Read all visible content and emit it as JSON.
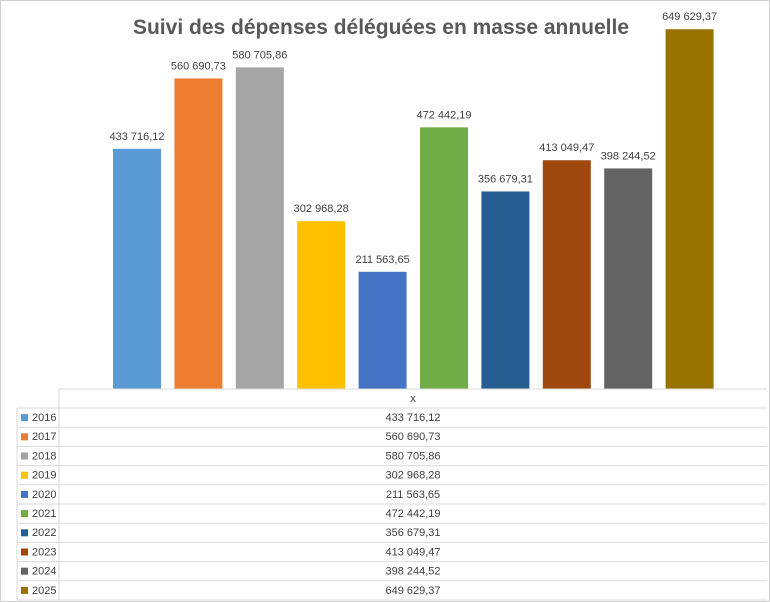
{
  "chart_data": {
    "type": "bar",
    "title": "Suivi des dépenses déléguées en masse annuelle",
    "xlabel": "x",
    "ylabel": "",
    "ylim": [
      0,
      650000
    ],
    "grid": false,
    "legend_placement": "bottom-table",
    "categories": [
      "x"
    ],
    "series": [
      {
        "name": "2016",
        "label": "433 716,12",
        "value": 433716.12,
        "color": "#5B9BD5"
      },
      {
        "name": "2017",
        "label": "560 690,73",
        "value": 560690.73,
        "color": "#ED7D31"
      },
      {
        "name": "2018",
        "label": "580 705,86",
        "value": 580705.86,
        "color": "#A5A5A5"
      },
      {
        "name": "2019",
        "label": "302 968,28",
        "value": 302968.28,
        "color": "#FFC000"
      },
      {
        "name": "2020",
        "label": "211 563,65",
        "value": 211563.65,
        "color": "#4472C4"
      },
      {
        "name": "2021",
        "label": "472 442,19",
        "value": 472442.19,
        "color": "#70AD47"
      },
      {
        "name": "2022",
        "label": "356 679,31",
        "value": 356679.31,
        "color": "#255E91"
      },
      {
        "name": "2023",
        "label": "413 049,47",
        "value": 413049.47,
        "color": "#9E480E"
      },
      {
        "name": "2024",
        "label": "398 244,52",
        "value": 398244.52,
        "color": "#636363"
      },
      {
        "name": "2025",
        "label": "649 629,37",
        "value": 649629.37,
        "color": "#997300"
      }
    ]
  }
}
